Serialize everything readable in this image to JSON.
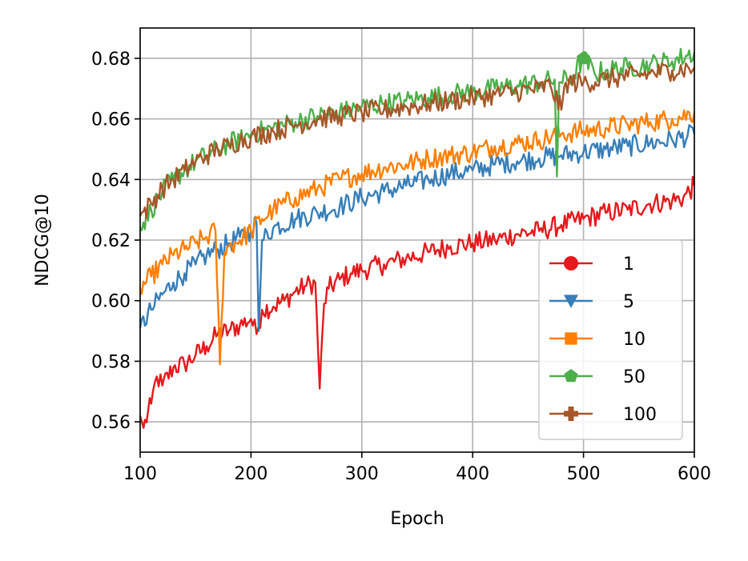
{
  "chart_data": {
    "type": "line",
    "title": "",
    "xlabel": "Epoch",
    "ylabel": "NDCG@10",
    "xlim": [
      100,
      600
    ],
    "ylim": [
      0.55,
      0.69
    ],
    "x_ticks": [
      100,
      200,
      300,
      400,
      500,
      600
    ],
    "y_ticks": [
      0.56,
      0.58,
      0.6,
      0.62,
      0.64,
      0.66,
      0.68
    ],
    "grid": true,
    "legend_position": "lower-right",
    "series": [
      {
        "name": "1",
        "color": "#e41a1c",
        "marker": "circle",
        "points": [
          [
            100,
            0.562
          ],
          [
            103,
            0.558
          ],
          [
            110,
            0.566
          ],
          [
            115,
            0.575
          ],
          [
            120,
            0.572
          ],
          [
            130,
            0.578
          ],
          [
            140,
            0.579
          ],
          [
            150,
            0.582
          ],
          [
            160,
            0.585
          ],
          [
            170,
            0.589
          ],
          [
            180,
            0.59
          ],
          [
            190,
            0.592
          ],
          [
            200,
            0.594
          ],
          [
            205,
            0.589
          ],
          [
            210,
            0.597
          ],
          [
            220,
            0.598
          ],
          [
            230,
            0.6
          ],
          [
            240,
            0.603
          ],
          [
            250,
            0.605
          ],
          [
            258,
            0.606
          ],
          [
            262,
            0.571
          ],
          [
            266,
            0.599
          ],
          [
            270,
            0.604
          ],
          [
            280,
            0.607
          ],
          [
            290,
            0.609
          ],
          [
            300,
            0.61
          ],
          [
            320,
            0.612
          ],
          [
            340,
            0.614
          ],
          [
            360,
            0.616
          ],
          [
            380,
            0.618
          ],
          [
            400,
            0.619
          ],
          [
            420,
            0.62
          ],
          [
            440,
            0.622
          ],
          [
            460,
            0.623
          ],
          [
            480,
            0.625
          ],
          [
            500,
            0.627
          ],
          [
            520,
            0.629
          ],
          [
            540,
            0.63
          ],
          [
            560,
            0.632
          ],
          [
            580,
            0.633
          ],
          [
            590,
            0.634
          ],
          [
            600,
            0.638
          ]
        ]
      },
      {
        "name": "5",
        "color": "#377eb8",
        "marker": "triangle-down",
        "points": [
          [
            100,
            0.591
          ],
          [
            110,
            0.597
          ],
          [
            120,
            0.602
          ],
          [
            130,
            0.606
          ],
          [
            140,
            0.609
          ],
          [
            150,
            0.612
          ],
          [
            160,
            0.615
          ],
          [
            170,
            0.617
          ],
          [
            180,
            0.619
          ],
          [
            190,
            0.621
          ],
          [
            200,
            0.623
          ],
          [
            205,
            0.626
          ],
          [
            207,
            0.59
          ],
          [
            210,
            0.62
          ],
          [
            220,
            0.624
          ],
          [
            240,
            0.627
          ],
          [
            260,
            0.629
          ],
          [
            280,
            0.631
          ],
          [
            300,
            0.634
          ],
          [
            320,
            0.636
          ],
          [
            340,
            0.638
          ],
          [
            360,
            0.64
          ],
          [
            380,
            0.642
          ],
          [
            400,
            0.643
          ],
          [
            420,
            0.645
          ],
          [
            440,
            0.646
          ],
          [
            460,
            0.647
          ],
          [
            480,
            0.648
          ],
          [
            500,
            0.649
          ],
          [
            520,
            0.65
          ],
          [
            540,
            0.651
          ],
          [
            560,
            0.652
          ],
          [
            580,
            0.653
          ],
          [
            600,
            0.655
          ]
        ]
      },
      {
        "name": "10",
        "color": "#ff7f00",
        "marker": "square",
        "points": [
          [
            100,
            0.604
          ],
          [
            110,
            0.608
          ],
          [
            120,
            0.612
          ],
          [
            130,
            0.615
          ],
          [
            140,
            0.617
          ],
          [
            150,
            0.619
          ],
          [
            160,
            0.621
          ],
          [
            168,
            0.623
          ],
          [
            172,
            0.579
          ],
          [
            176,
            0.616
          ],
          [
            180,
            0.618
          ],
          [
            190,
            0.62
          ],
          [
            200,
            0.623
          ],
          [
            210,
            0.627
          ],
          [
            220,
            0.63
          ],
          [
            240,
            0.634
          ],
          [
            260,
            0.637
          ],
          [
            280,
            0.64
          ],
          [
            300,
            0.642
          ],
          [
            320,
            0.644
          ],
          [
            340,
            0.645
          ],
          [
            360,
            0.647
          ],
          [
            380,
            0.648
          ],
          [
            400,
            0.649
          ],
          [
            420,
            0.651
          ],
          [
            440,
            0.652
          ],
          [
            460,
            0.653
          ],
          [
            480,
            0.655
          ],
          [
            500,
            0.656
          ],
          [
            520,
            0.657
          ],
          [
            540,
            0.658
          ],
          [
            560,
            0.659
          ],
          [
            580,
            0.66
          ],
          [
            600,
            0.662
          ]
        ]
      },
      {
        "name": "50",
        "color": "#4daf4a",
        "marker": "pentagon",
        "points": [
          [
            100,
            0.624
          ],
          [
            110,
            0.63
          ],
          [
            120,
            0.636
          ],
          [
            130,
            0.64
          ],
          [
            140,
            0.643
          ],
          [
            150,
            0.646
          ],
          [
            160,
            0.648
          ],
          [
            170,
            0.65
          ],
          [
            180,
            0.652
          ],
          [
            190,
            0.653
          ],
          [
            200,
            0.655
          ],
          [
            220,
            0.657
          ],
          [
            240,
            0.659
          ],
          [
            260,
            0.661
          ],
          [
            280,
            0.662
          ],
          [
            300,
            0.664
          ],
          [
            320,
            0.665
          ],
          [
            340,
            0.666
          ],
          [
            360,
            0.667
          ],
          [
            380,
            0.668
          ],
          [
            400,
            0.669
          ],
          [
            420,
            0.67
          ],
          [
            440,
            0.671
          ],
          [
            460,
            0.672
          ],
          [
            474,
            0.673
          ],
          [
            476,
            0.641
          ],
          [
            478,
            0.672
          ],
          [
            490,
            0.674
          ],
          [
            500,
            0.68
          ],
          [
            510,
            0.675
          ],
          [
            520,
            0.676
          ],
          [
            540,
            0.677
          ],
          [
            560,
            0.678
          ],
          [
            580,
            0.679
          ],
          [
            600,
            0.682
          ]
        ]
      },
      {
        "name": "100",
        "color": "#a65628",
        "marker": "plus",
        "points": [
          [
            100,
            0.628
          ],
          [
            110,
            0.632
          ],
          [
            120,
            0.637
          ],
          [
            130,
            0.64
          ],
          [
            140,
            0.643
          ],
          [
            150,
            0.646
          ],
          [
            160,
            0.648
          ],
          [
            170,
            0.65
          ],
          [
            180,
            0.651
          ],
          [
            190,
            0.653
          ],
          [
            200,
            0.654
          ],
          [
            220,
            0.656
          ],
          [
            240,
            0.658
          ],
          [
            260,
            0.66
          ],
          [
            280,
            0.661
          ],
          [
            300,
            0.662
          ],
          [
            320,
            0.663
          ],
          [
            340,
            0.664
          ],
          [
            360,
            0.665
          ],
          [
            380,
            0.666
          ],
          [
            400,
            0.667
          ],
          [
            420,
            0.668
          ],
          [
            440,
            0.669
          ],
          [
            460,
            0.67
          ],
          [
            470,
            0.671
          ],
          [
            480,
            0.663
          ],
          [
            484,
            0.672
          ],
          [
            500,
            0.672
          ],
          [
            520,
            0.673
          ],
          [
            540,
            0.674
          ],
          [
            560,
            0.675
          ],
          [
            580,
            0.676
          ],
          [
            600,
            0.677
          ]
        ]
      }
    ]
  }
}
